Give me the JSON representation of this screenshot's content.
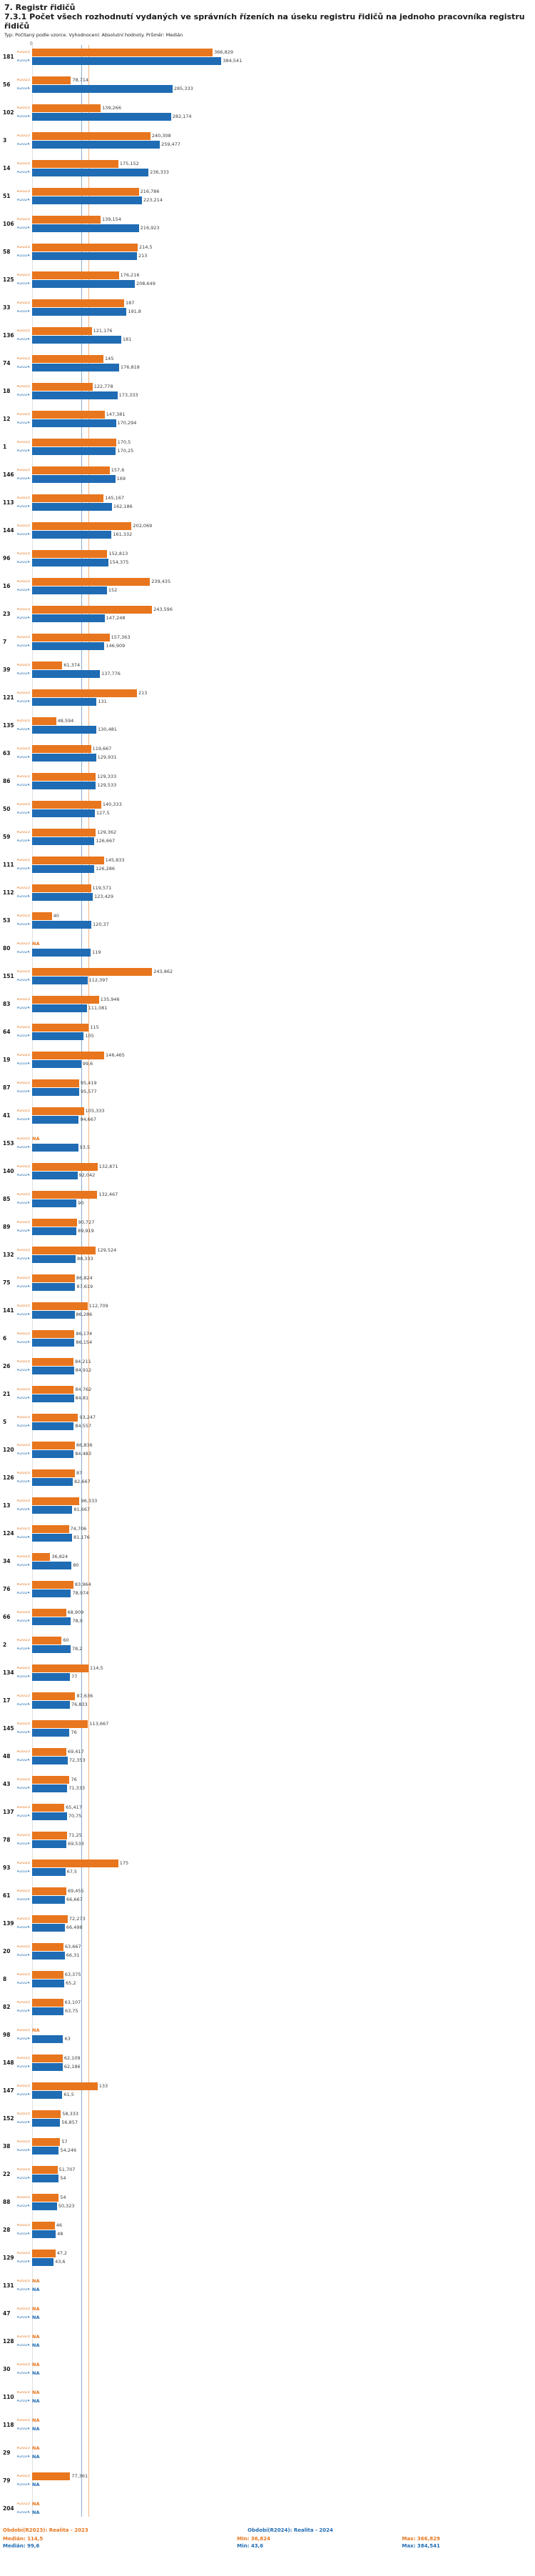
{
  "header": {
    "section_title": "7. Registr řidičů",
    "title": "7.3.1 Počet všech rozhodnutí vydaných ve správních řízeních na úseku registru řidičů na jednoho pracovníka registru řidičů",
    "meta": "Typ: Počítaný podle vzorce. Vyhodnocení: Absolutní hodnoty. Průměr: Medián"
  },
  "chart_data": {
    "type": "bar",
    "orientation": "horizontal",
    "sort": "descending by R2024",
    "grid": "off",
    "legend_position": "bottom",
    "x_axis": {
      "min": 0,
      "origin_tick_label": "0"
    },
    "series": [
      {
        "key": "r2023",
        "label": "R2023",
        "name": "Období(R2023): Realita - 2023",
        "color": "#E8761E",
        "median": 114.5,
        "min": 36.824,
        "max": 366.829
      },
      {
        "key": "r2024",
        "label": "R2024",
        "name": "Období(R2024): Realita - 2024",
        "color": "#1F6CB4",
        "median": 99.6,
        "min": 43.6,
        "max": 384.541
      }
    ],
    "rows": [
      {
        "id": "181",
        "r2023": "366,829",
        "r2024": "384,541"
      },
      {
        "id": "56",
        "r2023": "78,714",
        "r2024": "285,333"
      },
      {
        "id": "102",
        "r2023": "139,266",
        "r2024": "282,174"
      },
      {
        "id": "3",
        "r2023": "240,308",
        "r2024": "259,477"
      },
      {
        "id": "14",
        "r2023": "175,152",
        "r2024": "236,333"
      },
      {
        "id": "51",
        "r2023": "216,786",
        "r2024": "223,214"
      },
      {
        "id": "106",
        "r2023": "139,154",
        "r2024": "216,923"
      },
      {
        "id": "58",
        "r2023": "214,5",
        "r2024": "213"
      },
      {
        "id": "125",
        "r2023": "176,216",
        "r2024": "208,649"
      },
      {
        "id": "33",
        "r2023": "187",
        "r2024": "191,8"
      },
      {
        "id": "136",
        "r2023": "121,176",
        "r2024": "181"
      },
      {
        "id": "74",
        "r2023": "145",
        "r2024": "176,818"
      },
      {
        "id": "18",
        "r2023": "122,778",
        "r2024": "173,333"
      },
      {
        "id": "12",
        "r2023": "147,381",
        "r2024": "170,294"
      },
      {
        "id": "1",
        "r2023": "170,5",
        "r2024": "170,25"
      },
      {
        "id": "146",
        "r2023": "157,6",
        "r2024": "169"
      },
      {
        "id": "113",
        "r2023": "145,167",
        "r2024": "162,186"
      },
      {
        "id": "144",
        "r2023": "202,069",
        "r2024": "161,332"
      },
      {
        "id": "96",
        "r2023": "152,813",
        "r2024": "154,375"
      },
      {
        "id": "16",
        "r2023": "239,435",
        "r2024": "152"
      },
      {
        "id": "23",
        "r2023": "243,596",
        "r2024": "147,248"
      },
      {
        "id": "7",
        "r2023": "157,363",
        "r2024": "146,909"
      },
      {
        "id": "39",
        "r2023": "61,374",
        "r2024": "137,776"
      },
      {
        "id": "121",
        "r2023": "213",
        "r2024": "131"
      },
      {
        "id": "135",
        "r2023": "48,594",
        "r2024": "130,481"
      },
      {
        "id": "63",
        "r2023": "119,667",
        "r2024": "129,931"
      },
      {
        "id": "86",
        "r2023": "129,333",
        "r2024": "129,533"
      },
      {
        "id": "50",
        "r2023": "140,333",
        "r2024": "127,5"
      },
      {
        "id": "59",
        "r2023": "129,362",
        "r2024": "126,667"
      },
      {
        "id": "111",
        "r2023": "145,833",
        "r2024": "126,286"
      },
      {
        "id": "112",
        "r2023": "119,571",
        "r2024": "123,429"
      },
      {
        "id": "53",
        "r2023": "40",
        "r2024": "120,37"
      },
      {
        "id": "80",
        "r2023": "NA",
        "r2024": "119"
      },
      {
        "id": "151",
        "r2023": "243,862",
        "r2024": "112,397"
      },
      {
        "id": "83",
        "r2023": "135,946",
        "r2024": "111,081"
      },
      {
        "id": "64",
        "r2023": "115",
        "r2024": "105"
      },
      {
        "id": "19",
        "r2023": "146,465",
        "r2024": "99,6"
      },
      {
        "id": "87",
        "r2023": "95,419",
        "r2024": "95,577"
      },
      {
        "id": "41",
        "r2023": "105,333",
        "r2024": "94,667"
      },
      {
        "id": "153",
        "r2023": "NA",
        "r2024": "93,5"
      },
      {
        "id": "140",
        "r2023": "132,871",
        "r2024": "92,042"
      },
      {
        "id": "85",
        "r2023": "132,467",
        "r2024": "90"
      },
      {
        "id": "89",
        "r2023": "90,727",
        "r2024": "89,919"
      },
      {
        "id": "132",
        "r2023": "129,524",
        "r2024": "88,333"
      },
      {
        "id": "75",
        "r2023": "86,824",
        "r2024": "87,619"
      },
      {
        "id": "141",
        "r2023": "112,709",
        "r2024": "86,286"
      },
      {
        "id": "6",
        "r2023": "86,174",
        "r2024": "86,154"
      },
      {
        "id": "26",
        "r2023": "84,211",
        "r2024": "84,912"
      },
      {
        "id": "21",
        "r2023": "84,762",
        "r2024": "84,81"
      },
      {
        "id": "5",
        "r2023": "93,247",
        "r2024": "84,557"
      },
      {
        "id": "120",
        "r2023": "86,836",
        "r2024": "84,483"
      },
      {
        "id": "126",
        "r2023": "87",
        "r2024": "82,667"
      },
      {
        "id": "13",
        "r2023": "96,333",
        "r2024": "81,667"
      },
      {
        "id": "124",
        "r2023": "74,706",
        "r2024": "81,176"
      },
      {
        "id": "34",
        "r2023": "36,824",
        "r2024": "80"
      },
      {
        "id": "76",
        "r2023": "83,964",
        "r2024": "78,974"
      },
      {
        "id": "66",
        "r2023": "68,909",
        "r2024": "78,9"
      },
      {
        "id": "2",
        "r2023": "60",
        "r2024": "78,2"
      },
      {
        "id": "134",
        "r2023": "114,5",
        "r2024": "77"
      },
      {
        "id": "17",
        "r2023": "87,636",
        "r2024": "76,833"
      },
      {
        "id": "145",
        "r2023": "113,667",
        "r2024": "76"
      },
      {
        "id": "48",
        "r2023": "69,417",
        "r2024": "72,353"
      },
      {
        "id": "43",
        "r2023": "76",
        "r2024": "71,333"
      },
      {
        "id": "137",
        "r2023": "65,417",
        "r2024": "70,75"
      },
      {
        "id": "78",
        "r2023": "71,25",
        "r2024": "69,533"
      },
      {
        "id": "93",
        "r2023": "175",
        "r2024": "67,5"
      },
      {
        "id": "61",
        "r2023": "69,455",
        "r2024": "66,667"
      },
      {
        "id": "139",
        "r2023": "72,273",
        "r2024": "66,498"
      },
      {
        "id": "20",
        "r2023": "63,667",
        "r2024": "66,31"
      },
      {
        "id": "8",
        "r2023": "63,375",
        "r2024": "65,2"
      },
      {
        "id": "82",
        "r2023": "63,107",
        "r2024": "63,75"
      },
      {
        "id": "98",
        "r2023": "NA",
        "r2024": "63"
      },
      {
        "id": "148",
        "r2023": "62,109",
        "r2024": "62,186"
      },
      {
        "id": "147",
        "r2023": "133",
        "r2024": "61,5"
      },
      {
        "id": "152",
        "r2023": "58,333",
        "r2024": "56,857"
      },
      {
        "id": "38",
        "r2023": "57",
        "r2024": "54,246"
      },
      {
        "id": "22",
        "r2023": "51,707",
        "r2024": "54"
      },
      {
        "id": "88",
        "r2023": "54",
        "r2024": "50,323"
      },
      {
        "id": "28",
        "r2023": "46",
        "r2024": "48"
      },
      {
        "id": "129",
        "r2023": "47,2",
        "r2024": "43,6"
      },
      {
        "id": "131",
        "r2023": "NA",
        "r2024": "NA"
      },
      {
        "id": "47",
        "r2023": "NA",
        "r2024": "NA"
      },
      {
        "id": "128",
        "r2023": "NA",
        "r2024": "NA"
      },
      {
        "id": "30",
        "r2023": "NA",
        "r2024": "NA"
      },
      {
        "id": "110",
        "r2023": "NA",
        "r2024": "NA"
      },
      {
        "id": "118",
        "r2023": "NA",
        "r2024": "NA"
      },
      {
        "id": "29",
        "r2023": "NA",
        "r2024": "NA"
      },
      {
        "id": "79",
        "r2023": "77,361",
        "r2024": "NA"
      },
      {
        "id": "204",
        "r2023": "NA",
        "r2024": "NA"
      }
    ]
  },
  "legend": {
    "r2023": {
      "title": "Období(R2023): Realita - 2023",
      "median": "Medián: 114,5",
      "min": "Min: 36,824",
      "max": "Max: 366,829"
    },
    "r2024": {
      "title": "Období(R2024): Realita - 2024",
      "median": "Medián: 99,6",
      "min": "Min: 43,6",
      "max": "Max: 384,541"
    }
  }
}
